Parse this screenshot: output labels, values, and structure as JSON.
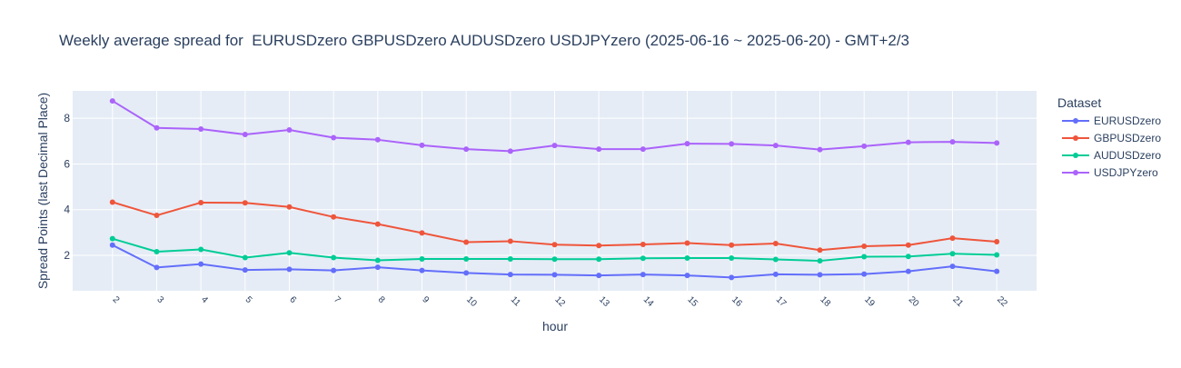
{
  "chart_data": {
    "type": "line",
    "title": "Weekly average spread for  EURUSDzero GBPUSDzero AUDUSDzero USDJPYzero (2025-06-16 ~ 2025-06-20) - GMT+2/3",
    "xlabel": "hour",
    "ylabel": "Spread Points (last Decimal Place)",
    "x": [
      2,
      3,
      4,
      5,
      6,
      7,
      8,
      9,
      10,
      11,
      12,
      13,
      14,
      15,
      16,
      17,
      18,
      19,
      20,
      21,
      22
    ],
    "yticks": [
      2,
      4,
      6,
      8
    ],
    "ylim": [
      0.45,
      9.2
    ],
    "xlim": [
      1.1,
      22.9
    ],
    "grid": true,
    "legend_title": "Dataset",
    "legend_position": "right",
    "series": [
      {
        "name": "EURUSDzero",
        "color": "#636efa",
        "values": [
          2.45,
          1.47,
          1.62,
          1.36,
          1.39,
          1.34,
          1.48,
          1.34,
          1.23,
          1.16,
          1.15,
          1.12,
          1.16,
          1.12,
          1.03,
          1.17,
          1.15,
          1.18,
          1.3,
          1.52,
          1.3
        ]
      },
      {
        "name": "GBPUSDzero",
        "color": "#ef553b",
        "values": [
          4.33,
          3.75,
          4.31,
          4.3,
          4.12,
          3.68,
          3.37,
          2.98,
          2.58,
          2.62,
          2.47,
          2.43,
          2.48,
          2.54,
          2.45,
          2.52,
          2.23,
          2.4,
          2.45,
          2.75,
          2.6
        ]
      },
      {
        "name": "AUDUSDzero",
        "color": "#00cc96",
        "values": [
          2.73,
          2.16,
          2.26,
          1.9,
          2.11,
          1.9,
          1.78,
          1.84,
          1.84,
          1.84,
          1.83,
          1.83,
          1.87,
          1.88,
          1.88,
          1.82,
          1.76,
          1.94,
          1.95,
          2.07,
          2.02
        ]
      },
      {
        "name": "USDJPYzero",
        "color": "#ab63fa",
        "values": [
          8.76,
          7.58,
          7.53,
          7.29,
          7.49,
          7.15,
          7.06,
          6.82,
          6.65,
          6.56,
          6.81,
          6.65,
          6.65,
          6.89,
          6.88,
          6.81,
          6.63,
          6.78,
          6.95,
          6.97,
          6.92
        ]
      }
    ]
  }
}
